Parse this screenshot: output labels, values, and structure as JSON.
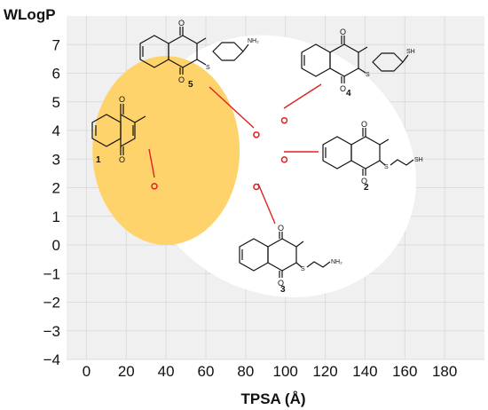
{
  "chart_data": {
    "type": "scatter",
    "title": "",
    "xlabel": "TPSA (Å)",
    "ylabel": "WLogP",
    "xlim": [
      -10,
      200
    ],
    "ylim": [
      -4,
      8
    ],
    "xticks": [
      "0",
      "20",
      "40",
      "60",
      "80",
      "100",
      "120",
      "140",
      "160",
      "180"
    ],
    "yticks": [
      "7",
      "6",
      "5",
      "4",
      "3",
      "2",
      "1",
      "0",
      "−1",
      "−2",
      "−3",
      "−4"
    ],
    "grid": true,
    "regions": [
      {
        "name": "white",
        "color": "#ffffff",
        "cx": 96,
        "cy": 2.75,
        "rx": 72,
        "ry": 4.4,
        "rotation_deg": 32
      },
      {
        "name": "yolk",
        "color": "#ffd36b",
        "cx": 40,
        "cy": 3.3,
        "rx": 37,
        "ry": 3.3,
        "rotation_deg": 0
      }
    ],
    "points": [
      {
        "label": "1",
        "x": 34.14,
        "y": 2.05
      },
      {
        "label": "2",
        "x": 99.44,
        "y": 2.98
      },
      {
        "label": "3",
        "x": 85.38,
        "y": 2.03
      },
      {
        "label": "4",
        "x": 99.44,
        "y": 4.35
      },
      {
        "label": "5",
        "x": 85.38,
        "y": 3.85
      }
    ],
    "point_color": "#e02020",
    "structures": [
      {
        "id": "1",
        "label": "1",
        "sub": "methyl"
      },
      {
        "id": "5",
        "label": "5",
        "sub": "S-aryl",
        "end": "NH2"
      },
      {
        "id": "4",
        "label": "4",
        "sub": "S-aryl",
        "end": "SH"
      },
      {
        "id": "2",
        "label": "2",
        "sub": "S-chain",
        "end": "SH"
      },
      {
        "id": "3",
        "label": "3",
        "sub": "S-chain",
        "end": "NH2"
      }
    ]
  }
}
